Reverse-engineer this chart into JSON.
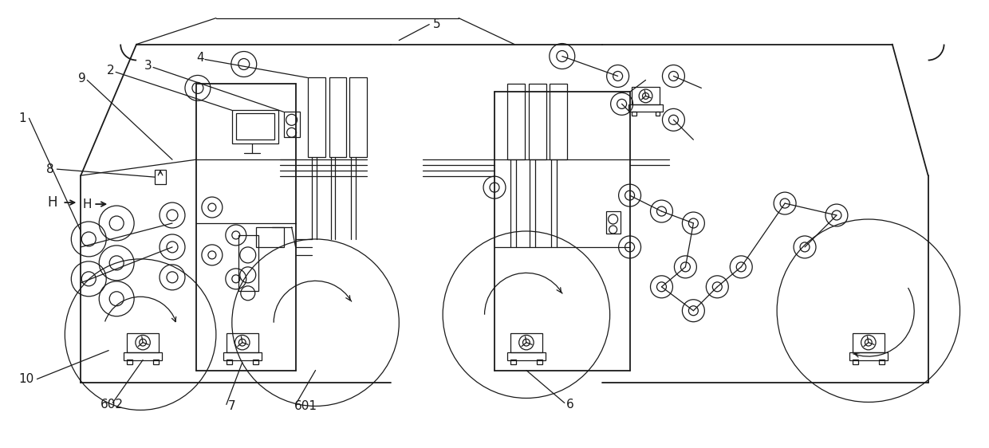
{
  "bg_color": "#ffffff",
  "line_color": "#1a1a1a",
  "lw": 0.9,
  "lw2": 1.3,
  "figsize": [
    12.4,
    5.62
  ],
  "dpi": 100,
  "label_fontsize": 11,
  "label_font": "DejaVu Sans"
}
